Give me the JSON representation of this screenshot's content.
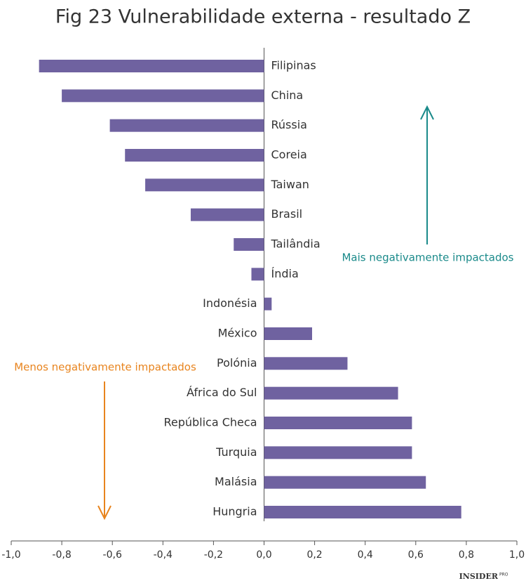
{
  "chart_data": {
    "type": "hbar",
    "title": "Fig 23 Vulnerabilidade externa - resultado Z",
    "categories": [
      "Filipinas",
      "China",
      "Rússia",
      "Coreia",
      "Taiwan",
      "Brasil",
      "Tailândia",
      "Índia",
      "Indonésia",
      "México",
      "Polónia",
      "África do Sul",
      "República Checa",
      "Turquia",
      "Malásia",
      "Hungria"
    ],
    "values": [
      -0.89,
      -0.8,
      -0.61,
      -0.55,
      -0.47,
      -0.29,
      -0.12,
      -0.05,
      0.03,
      0.19,
      0.33,
      0.53,
      0.585,
      0.585,
      0.64,
      0.78
    ],
    "color": "#6f62a0",
    "xlim": [
      -1.0,
      1.0
    ],
    "xticks": [
      {
        "value": -1.0,
        "label": "-1,0"
      },
      {
        "value": -0.8,
        "label": "-0,8"
      },
      {
        "value": -0.6,
        "label": "-0,6"
      },
      {
        "value": -0.4,
        "label": "-0,4"
      },
      {
        "value": -0.2,
        "label": "-0,2"
      },
      {
        "value": 0,
        "label": "0,0"
      },
      {
        "value": 0.2,
        "label": "0,2"
      },
      {
        "value": 0.4,
        "label": "0,4"
      },
      {
        "value": 0.6,
        "label": "0,6"
      },
      {
        "value": 0.8,
        "label": "0,8"
      },
      {
        "value": 1.0,
        "label": "1,0"
      }
    ],
    "annotations": [
      "Mais negativamente impactados",
      "Menos negativamente impactados"
    ],
    "annotation_colors": [
      "#1a8a8a",
      "#e8841e"
    ],
    "logo": "INSIDER",
    "logo_suffix": "PRO"
  }
}
